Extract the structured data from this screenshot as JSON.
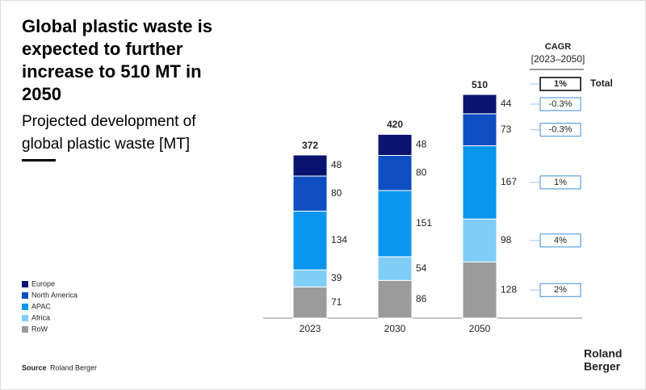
{
  "chart_data": {
    "type": "stacked_bar",
    "title": "Global plastic waste is expected to further increase to 510 MT in 2050",
    "subtitle": "Projected development of global plastic waste [MT]",
    "categories": [
      "2023",
      "2030",
      "2050"
    ],
    "totals": [
      372,
      420,
      510
    ],
    "series": [
      {
        "name": "RoW",
        "color": "#9b9b9b",
        "values": [
          71,
          86,
          128
        ],
        "cagr": "2%"
      },
      {
        "name": "Africa",
        "color": "#80cdf8",
        "values": [
          39,
          54,
          98
        ],
        "cagr": "4%"
      },
      {
        "name": "APAC",
        "color": "#0a96ee",
        "values": [
          134,
          151,
          167
        ],
        "cagr": "1%"
      },
      {
        "name": "North America",
        "color": "#0e4ec2",
        "values": [
          80,
          80,
          73
        ],
        "cagr": "-0.3%"
      },
      {
        "name": "Europe",
        "color": "#0a1470",
        "values": [
          48,
          48,
          44
        ],
        "cagr": "-0.3%"
      }
    ],
    "cagr_title": "CAGR",
    "cagr_period": "[2023–2050]",
    "cagr_total": "1%",
    "cagr_total_label": "Total",
    "source_label": "Source",
    "source": "Roland Berger",
    "logo": [
      "Roland",
      "Berger"
    ]
  }
}
